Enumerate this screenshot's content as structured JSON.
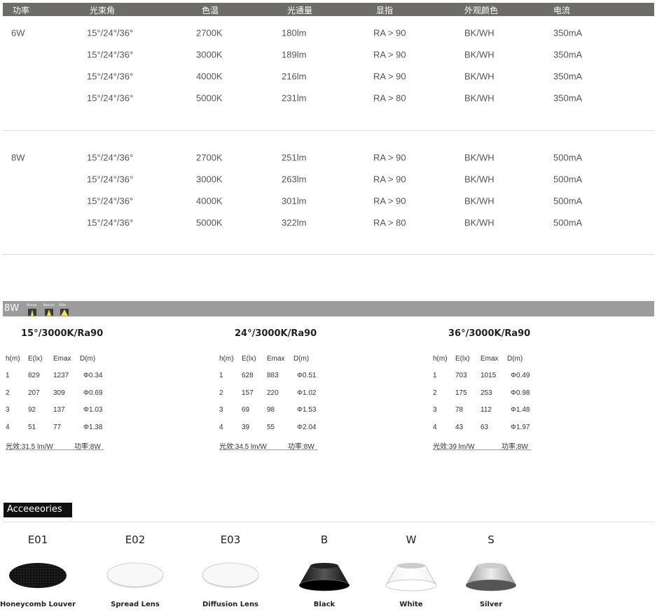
{
  "spec_table": {
    "headers": [
      "功率",
      "光束角",
      "色温",
      "光通量",
      "显指",
      "外观颜色",
      "电流"
    ],
    "groups": [
      {
        "power": "6W",
        "rows": [
          [
            "15°/24°/36°",
            "2700K",
            "180lm",
            "RA > 90",
            "BK/WH",
            "350mA"
          ],
          [
            "15°/24°/36°",
            "3000K",
            "189lm",
            "RA > 90",
            "BK/WH",
            "350mA"
          ],
          [
            "15°/24°/36°",
            "4000K",
            "216lm",
            "RA > 90",
            "BK/WH",
            "350mA"
          ],
          [
            "15°/24°/36°",
            "5000K",
            "231lm",
            "RA > 80",
            "BK/WH",
            "350mA"
          ]
        ]
      },
      {
        "power": "8W",
        "rows": [
          [
            "15°/24°/36°",
            "2700K",
            "251lm",
            "RA > 90",
            "BK/WH",
            "500mA"
          ],
          [
            "15°/24°/36°",
            "3000K",
            "263lm",
            "RA > 90",
            "BK/WH",
            "500mA"
          ],
          [
            "15°/24°/36°",
            "4000K",
            "301lm",
            "RA > 90",
            "BK/WH",
            "500mA"
          ],
          [
            "15°/24°/36°",
            "5000K",
            "322lm",
            "RA > 80",
            "BK/WH",
            "500mA"
          ]
        ]
      }
    ]
  },
  "photometric": {
    "power_label": "8W",
    "beam_icons": [
      "Narrow",
      "Medium",
      "Wide"
    ],
    "headers": [
      "h(m)",
      "E(lx)",
      "Emax",
      "D(m)"
    ],
    "blocks": [
      {
        "title": "15°/3000K/Ra90",
        "rows": [
          [
            "1",
            "829",
            "1237",
            "Φ0.34"
          ],
          [
            "2",
            "207",
            "309",
            "Φ0.69"
          ],
          [
            "3",
            "92",
            "137",
            "Φ1.03"
          ],
          [
            "4",
            "51",
            "77",
            "Φ1.38"
          ]
        ],
        "efficacy": "光效:31.5 lm/W",
        "power": "功率:8W"
      },
      {
        "title": "24°/3000K/Ra90",
        "rows": [
          [
            "1",
            "628",
            "883",
            "Φ0.51"
          ],
          [
            "2",
            "157",
            "220",
            "Φ1.02"
          ],
          [
            "3",
            "69",
            "98",
            "Φ1.53"
          ],
          [
            "4",
            "39",
            "55",
            "Φ2.04"
          ]
        ],
        "efficacy": "光效:34.5 lm/W",
        "power": "功率:8W"
      },
      {
        "title": "36°/3000K/Ra90",
        "rows": [
          [
            "1",
            "703",
            "1015",
            "Φ0.49"
          ],
          [
            "2",
            "175",
            "253",
            "Φ0.98"
          ],
          [
            "3",
            "78",
            "112",
            "Φ1.48"
          ],
          [
            "4",
            "43",
            "63",
            "Φ1.97"
          ]
        ],
        "efficacy": "光效:39 lm/W",
        "power": "功率:8W"
      }
    ]
  },
  "accessories": {
    "title": "Acceeeories",
    "items": [
      {
        "code": "E01",
        "name": "Honeycomb Louver",
        "icon": "honeycomb"
      },
      {
        "code": "E02",
        "name": "Spread Lens",
        "icon": "lens"
      },
      {
        "code": "E03",
        "name": "Diffusion Lens",
        "icon": "lens"
      },
      {
        "code": "B",
        "name": "Black",
        "icon": "reflector",
        "color": "#111111"
      },
      {
        "code": "W",
        "name": "White",
        "icon": "reflector",
        "color": "#f2f2f2"
      },
      {
        "code": "S",
        "name": "Silver",
        "icon": "reflector",
        "color": "#9a9a9a"
      }
    ]
  }
}
